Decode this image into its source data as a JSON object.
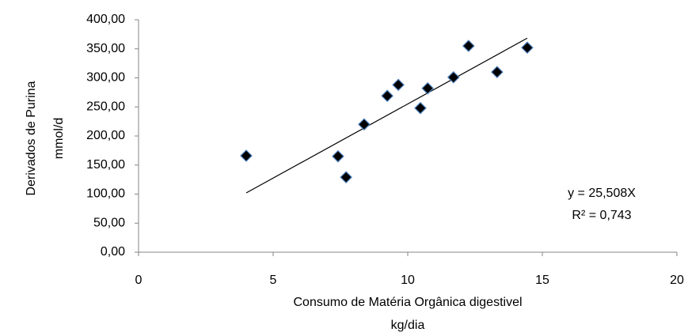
{
  "chart_data": {
    "type": "scatter",
    "x": [
      4.0,
      7.41,
      7.71,
      8.38,
      9.24,
      9.65,
      10.47,
      10.74,
      11.7,
      12.26,
      13.32,
      14.44
    ],
    "values": [
      166,
      165,
      129,
      220,
      269,
      288,
      248,
      282,
      301,
      355,
      310,
      352
    ],
    "color": "#000000",
    "xlim": [
      0,
      20
    ],
    "xticks": [
      0,
      5,
      10,
      15,
      20
    ],
    "ylim": [
      0,
      400
    ],
    "yticks": [
      {
        "value": 0,
        "label": "0,00"
      },
      {
        "value": 50,
        "label": "50,00"
      },
      {
        "value": 100,
        "label": "100,00"
      },
      {
        "value": 150,
        "label": "150,00"
      },
      {
        "value": 200,
        "label": "200,00"
      },
      {
        "value": 250,
        "label": "250,00"
      },
      {
        "value": 300,
        "label": "300,00"
      },
      {
        "value": 350,
        "label": "350,00"
      },
      {
        "value": 400,
        "label": "400,00"
      }
    ],
    "x_label": [
      "Consumo de Matéria Orgânica digestivel",
      "kg/dia"
    ],
    "y_label": [
      "Derivados  de Purina",
      "mmol/d"
    ],
    "grid": false,
    "trendline": {
      "slope": 25.508,
      "equation": "y = 25,508X",
      "r_squared": "R² = 0,743"
    }
  }
}
